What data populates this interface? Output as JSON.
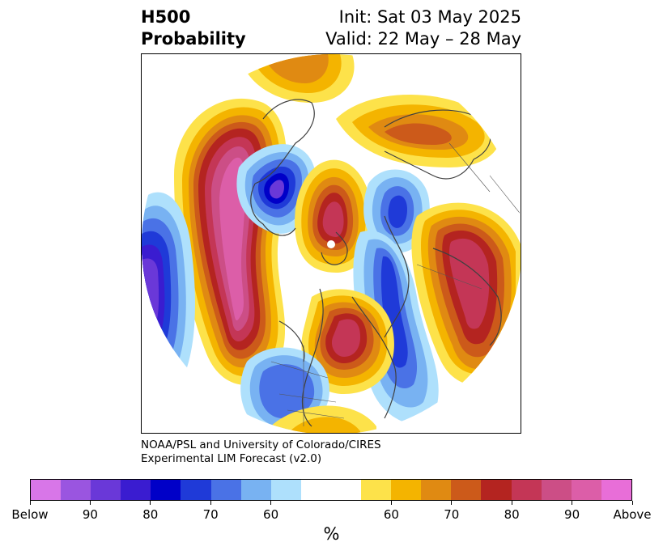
{
  "title": {
    "left_line1": "H500",
    "left_line2": "Probability",
    "right_line1": "Init: Sat 03 May 2025",
    "right_line2": "Valid: 22 May – 28 May"
  },
  "credit": {
    "line1": "NOAA/PSL and University of Colorado/CIRES",
    "line2": "Experimental LIM Forecast (v2.0)"
  },
  "colorbar": {
    "unit": "%",
    "colors": [
      "#d876e8",
      "#9a55e0",
      "#6a38d8",
      "#3a1cd0",
      "#0000c8",
      "#1f3ad8",
      "#4a72e6",
      "#78b2f2",
      "#aee0fc",
      "#ffffff",
      "#ffffff",
      "#fde24a",
      "#f4b400",
      "#e08a12",
      "#cc5a1a",
      "#b42420",
      "#c43656",
      "#cc4e86",
      "#dc5ea8",
      "#e86ed8"
    ],
    "tick_labels": [
      "Below",
      "90",
      "80",
      "70",
      "60",
      "60",
      "70",
      "80",
      "90",
      "Above"
    ]
  },
  "map": {
    "projection": "north-polar-stereographic",
    "contour_levels_percent": [
      60,
      65,
      70,
      75,
      80,
      85,
      90
    ]
  }
}
